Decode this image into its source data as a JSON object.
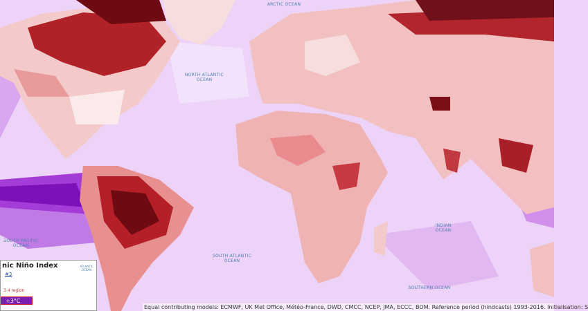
{
  "map": {
    "ocean_labels": [
      {
        "lines": [
          "ARCTIC OCEAN"
        ]
      },
      {
        "lines": [
          "NORTH ATLANTIC",
          "OCEAN"
        ]
      },
      {
        "lines": [
          "SOUTH PACIFIC",
          "OCEAN"
        ]
      },
      {
        "lines": [
          "SOUTH ATLANTIC",
          "OCEAN"
        ]
      },
      {
        "lines": [
          "INDIAN",
          "OCEAN"
        ]
      },
      {
        "lines": [
          "SOUTHERN OCEAN"
        ]
      }
    ]
  },
  "inset": {
    "title": "nic Niño Index",
    "link": "#3",
    "map_label": "ATLANTIC OCEAN",
    "region": "3.4 region",
    "legend_value": "+3°C"
  },
  "footer": "Equal contributing models: ECMWF, UK Met Office, Météo-France, DWD, CMCC, NCEP, JMA, ECCC, BOM. Reference period (hindcasts) 1993-2016. Initialisation: S"
}
